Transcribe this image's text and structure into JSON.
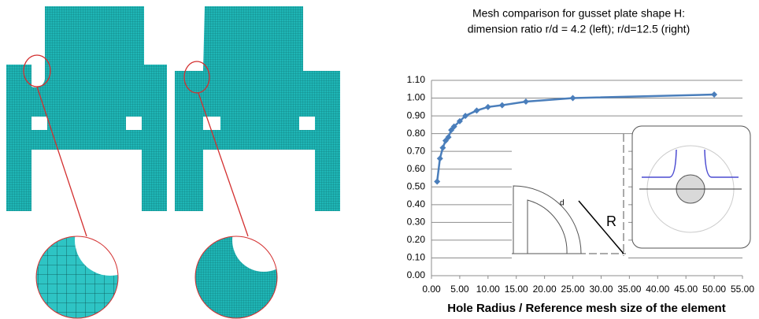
{
  "chart_data": {
    "type": "line",
    "title": "Mesh comparison for gusset plate shape H:",
    "subtitle": "dimension ratio r/d = 4.2 (left); r/d=12.5 (right)",
    "x_label": "Hole Radius / Reference mesh size of the element",
    "x": [
      1.0,
      1.5,
      2.0,
      2.5,
      3.0,
      3.5,
      4.0,
      5.0,
      6.0,
      8.0,
      10.0,
      12.5,
      16.7,
      25.0,
      50.0
    ],
    "values": [
      0.53,
      0.66,
      0.72,
      0.76,
      0.78,
      0.82,
      0.84,
      0.87,
      0.9,
      0.93,
      0.95,
      0.96,
      0.98,
      1.0,
      1.02
    ],
    "color": "#4a7ebb",
    "xlim": [
      0,
      55
    ],
    "ylim": [
      0,
      1.1
    ],
    "xticks": [
      {
        "value": 0,
        "label": "0.00"
      },
      {
        "value": 5,
        "label": "5.00"
      },
      {
        "value": 10,
        "label": "10.00"
      },
      {
        "value": 15,
        "label": "15.00"
      },
      {
        "value": 20,
        "label": "20.00"
      },
      {
        "value": 25,
        "label": "25.00"
      },
      {
        "value": 30,
        "label": "30.00"
      },
      {
        "value": 35,
        "label": "35.00"
      },
      {
        "value": 40,
        "label": "40.00"
      },
      {
        "value": 45,
        "label": "45.00"
      },
      {
        "value": 50,
        "label": "50.00"
      },
      {
        "value": 55,
        "label": "55.00"
      }
    ],
    "yticks": [
      {
        "value": 0,
        "label": "0.00"
      },
      {
        "value": 0.1,
        "label": "0.10"
      },
      {
        "value": 0.2,
        "label": "0.20"
      },
      {
        "value": 0.3,
        "label": "0.30"
      },
      {
        "value": 0.4,
        "label": "0.40"
      },
      {
        "value": 0.5,
        "label": "0.50"
      },
      {
        "value": 0.6,
        "label": "0.60"
      },
      {
        "value": 0.7,
        "label": "0.70"
      },
      {
        "value": 0.8,
        "label": "0.80"
      },
      {
        "value": 0.9,
        "label": "0.90"
      },
      {
        "value": 1.0,
        "label": "1.00"
      },
      {
        "value": 1.1,
        "label": "1.10"
      }
    ],
    "grid": true,
    "annotations": [
      "R",
      "d"
    ]
  }
}
